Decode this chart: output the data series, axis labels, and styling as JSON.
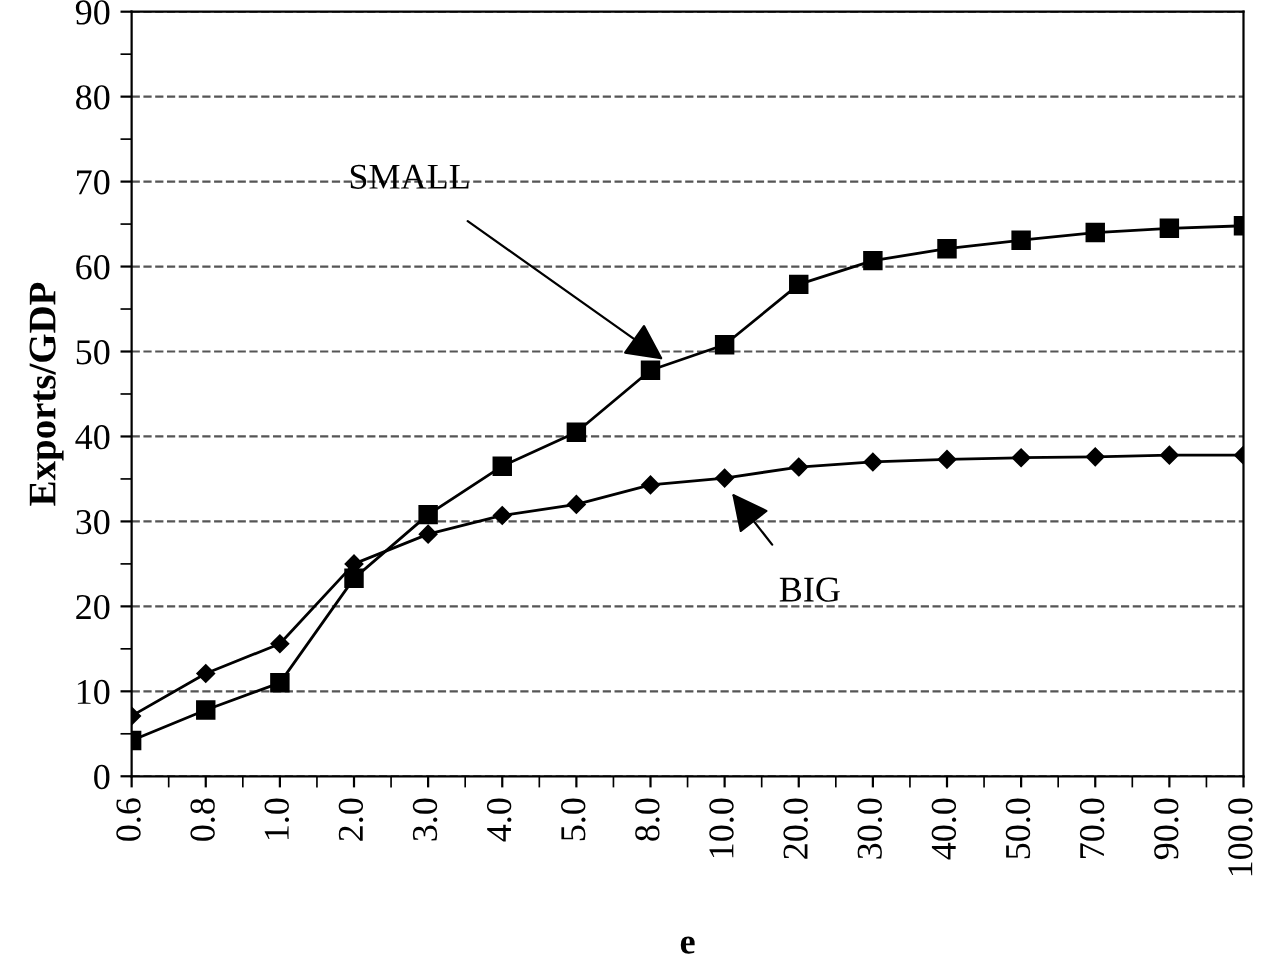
{
  "chart_data": {
    "type": "line",
    "xlabel": "e",
    "ylabel": "Exports/GDP",
    "categories": [
      "0.6",
      "0.8",
      "1.0",
      "2.0",
      "3.0",
      "4.0",
      "5.0",
      "8.0",
      "10.0",
      "20.0",
      "30.0",
      "40.0",
      "50.0",
      "70.0",
      "90.0",
      "100.0"
    ],
    "series": [
      {
        "name": "SMALL",
        "color": "#000000",
        "marker": "square",
        "values": [
          4.2,
          7.8,
          11,
          23.3,
          30.8,
          36.5,
          40.5,
          47.8,
          50.8,
          57.9,
          60.7,
          62.1,
          63.1,
          64,
          64.5,
          64.8
        ]
      },
      {
        "name": "BIG",
        "color": "#000000",
        "marker": "diamond",
        "values": [
          7.1,
          12.1,
          15.6,
          25,
          28.5,
          30.7,
          32,
          34.3,
          35.1,
          36.4,
          37,
          37.3,
          37.5,
          37.6,
          37.8,
          37.8
        ]
      }
    ],
    "ylim": [
      0,
      90
    ],
    "yticks": [
      0,
      10,
      20,
      30,
      40,
      50,
      60,
      70,
      80,
      90
    ],
    "grid": "y",
    "line_style": "solid"
  }
}
